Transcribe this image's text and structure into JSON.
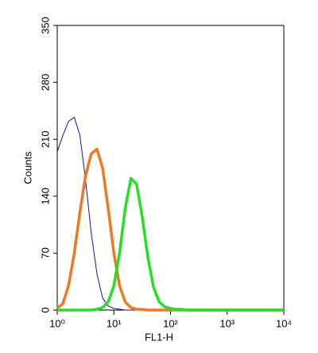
{
  "chart_data": {
    "type": "line",
    "x_label": "FL1-H",
    "y_label": "Counts",
    "xscale": "log",
    "x": [
      1,
      1.26,
      1.58,
      2,
      2.51,
      3.16,
      3.98,
      5.01,
      6.31,
      7.94,
      10,
      12.59,
      15.85,
      19.95,
      25.12,
      31.62,
      39.81,
      50.12,
      63.1,
      79.43,
      100,
      125.9,
      158.5,
      199.5,
      251.2,
      316.2,
      398.1,
      1000,
      10000
    ],
    "series": [
      {
        "color": "#1010b0",
        "width": 1,
        "values": [
          195,
          215,
          232,
          237,
          215,
          160,
          95,
          45,
          15,
          5,
          2,
          1,
          0,
          0,
          0,
          0,
          0,
          0,
          0,
          0,
          0,
          0,
          0,
          0,
          0,
          0,
          0,
          0,
          0
        ]
      },
      {
        "color": "#f07820",
        "width": 3.5,
        "values": [
          2,
          8,
          30,
          70,
          120,
          165,
          192,
          198,
          175,
          125,
          70,
          30,
          10,
          3,
          1,
          1,
          0,
          0,
          0,
          0,
          0,
          0,
          0,
          0,
          0,
          0,
          0,
          0,
          0
        ]
      },
      {
        "color": "#22e022",
        "width": 3.5,
        "values": [
          0,
          0,
          0,
          0,
          0,
          0,
          0,
          1,
          3,
          10,
          30,
          70,
          125,
          162,
          155,
          115,
          65,
          28,
          10,
          4,
          2,
          1,
          1,
          0,
          0,
          0,
          0,
          0,
          0
        ]
      }
    ],
    "xlim": [
      1,
      10000
    ],
    "xticks": [
      {
        "value": 1,
        "label": "10⁰"
      },
      {
        "value": 10,
        "label": "10¹"
      },
      {
        "value": 100,
        "label": "10²"
      },
      {
        "value": 1000,
        "label": "10³"
      },
      {
        "value": 10000,
        "label": "10⁴"
      }
    ],
    "ylim": [
      0,
      350
    ],
    "yticks": [
      0,
      70,
      140,
      210,
      280,
      350
    ]
  }
}
